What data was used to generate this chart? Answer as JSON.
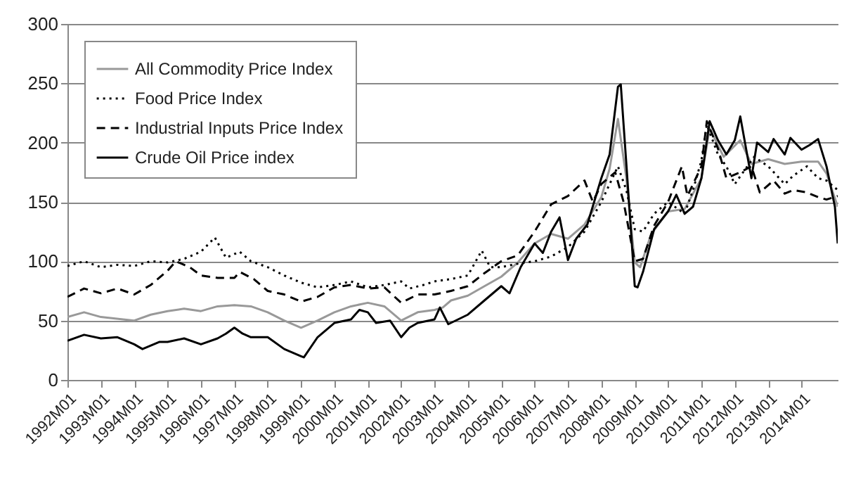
{
  "chart_data": {
    "type": "line",
    "xlim": [
      "1992-01",
      "2015-02"
    ],
    "xticks": [
      {
        "value": "1992-01",
        "label": "1992M01"
      },
      {
        "value": "1993-01",
        "label": "1993M01"
      },
      {
        "value": "1994-01",
        "label": "1994M01"
      },
      {
        "value": "1995-01",
        "label": "1995M01"
      },
      {
        "value": "1996-01",
        "label": "1996M01"
      },
      {
        "value": "1997-01",
        "label": "1997M01"
      },
      {
        "value": "1998-01",
        "label": "1998M01"
      },
      {
        "value": "1999-01",
        "label": "1999M01"
      },
      {
        "value": "2000-01",
        "label": "2000M01"
      },
      {
        "value": "2001-01",
        "label": "2001M01"
      },
      {
        "value": "2002-01",
        "label": "2002M01"
      },
      {
        "value": "2003-01",
        "label": "2003M01"
      },
      {
        "value": "2004-01",
        "label": "2004M01"
      },
      {
        "value": "2005-01",
        "label": "2005M01"
      },
      {
        "value": "2006-01",
        "label": "2006M01"
      },
      {
        "value": "2007-01",
        "label": "2007M01"
      },
      {
        "value": "2008-01",
        "label": "2008M01"
      },
      {
        "value": "2009-01",
        "label": "2009M01"
      },
      {
        "value": "2010-01",
        "label": "2010M01"
      },
      {
        "value": "2011-01",
        "label": "2011M01"
      },
      {
        "value": "2012-01",
        "label": "2012M01"
      },
      {
        "value": "2013-01",
        "label": "2013M01"
      },
      {
        "value": "2014-01",
        "label": "2014M01"
      }
    ],
    "ylim": [
      0,
      300
    ],
    "yticks": [
      0,
      50,
      100,
      150,
      200,
      250,
      300
    ],
    "grid": "y",
    "legend": "top left",
    "series": [
      {
        "name": "All Commodity Price Index",
        "color": "#999999",
        "line_style": "solid",
        "x": [
          "1992-01",
          "1992-07",
          "1993-01",
          "1994-01",
          "1994-07",
          "1995-01",
          "1995-07",
          "1996-01",
          "1996-07",
          "1997-01",
          "1997-07",
          "1998-01",
          "1998-07",
          "1999-01",
          "1999-07",
          "2000-01",
          "2000-07",
          "2001-01",
          "2001-07",
          "2002-01",
          "2002-07",
          "2003-01",
          "2003-04",
          "2003-07",
          "2004-01",
          "2004-07",
          "2005-01",
          "2005-07",
          "2006-01",
          "2006-07",
          "2007-01",
          "2007-07",
          "2008-01",
          "2008-04",
          "2008-07",
          "2008-10",
          "2009-01",
          "2009-03",
          "2009-07",
          "2010-01",
          "2010-07",
          "2011-01",
          "2011-04",
          "2011-09",
          "2012-03",
          "2012-07",
          "2013-01",
          "2013-07",
          "2014-01",
          "2014-07",
          "2014-10",
          "2015-02"
        ],
        "values": [
          53,
          57,
          53,
          50,
          55,
          58,
          60,
          58,
          62,
          63,
          62,
          57,
          50,
          44,
          50,
          57,
          62,
          65,
          62,
          50,
          57,
          59,
          61,
          67,
          71,
          79,
          87,
          99,
          115,
          123,
          119,
          131,
          154,
          178,
          220,
          170,
          99,
          95,
          123,
          142,
          144,
          170,
          212,
          188,
          202,
          182,
          186,
          182,
          184,
          184,
          174,
          146
        ]
      },
      {
        "name": "Food Price Index",
        "color": "#000000",
        "line_style": "dotted",
        "x": [
          "1992-01",
          "1992-07",
          "1993-01",
          "1993-07",
          "1994-01",
          "1994-07",
          "1995-01",
          "1995-07",
          "1996-01",
          "1996-06",
          "1996-10",
          "1997-03",
          "1997-07",
          "1998-01",
          "1998-07",
          "1999-01",
          "1999-07",
          "2000-01",
          "2000-07",
          "2001-01",
          "2001-07",
          "2002-01",
          "2002-04",
          "2002-09",
          "2003-01",
          "2003-07",
          "2004-01",
          "2004-06",
          "2004-09",
          "2005-01",
          "2005-07",
          "2006-01",
          "2006-07",
          "2007-01",
          "2007-07",
          "2008-01",
          "2008-07",
          "2008-10",
          "2009-01",
          "2009-04",
          "2009-08",
          "2010-01",
          "2010-07",
          "2010-10",
          "2011-01",
          "2011-03",
          "2011-07",
          "2011-10",
          "2012-01",
          "2012-04",
          "2012-08",
          "2013-01",
          "2013-07",
          "2013-10",
          "2014-03",
          "2014-07",
          "2014-10",
          "2015-02"
        ],
        "values": [
          96,
          100,
          95,
          97,
          96,
          100,
          99,
          102,
          108,
          120,
          103,
          108,
          100,
          95,
          88,
          82,
          78,
          80,
          83,
          78,
          80,
          83,
          77,
          80,
          83,
          85,
          88,
          109,
          95,
          95,
          98,
          100,
          104,
          112,
          125,
          150,
          180,
          160,
          127,
          125,
          140,
          150,
          140,
          160,
          185,
          215,
          190,
          180,
          165,
          175,
          188,
          180,
          165,
          172,
          180,
          170,
          168,
          160
        ]
      },
      {
        "name": "Industrial Inputs Price Index",
        "color": "#000000",
        "line_style": "dashed",
        "x": [
          "1992-01",
          "1992-07",
          "1993-01",
          "1993-07",
          "1994-01",
          "1994-07",
          "1995-01",
          "1995-04",
          "1995-09",
          "1996-01",
          "1996-07",
          "1997-01",
          "1997-03",
          "1997-08",
          "1998-01",
          "1998-07",
          "1999-01",
          "1999-07",
          "2000-01",
          "2000-07",
          "2001-01",
          "2001-07",
          "2002-01",
          "2002-07",
          "2003-01",
          "2003-07",
          "2004-01",
          "2004-07",
          "2005-01",
          "2005-07",
          "2006-01",
          "2006-07",
          "2007-01",
          "2007-07",
          "2007-10",
          "2008-01",
          "2008-06",
          "2008-09",
          "2009-01",
          "2009-04",
          "2009-08",
          "2010-01",
          "2010-06",
          "2010-08",
          "2011-01",
          "2011-03",
          "2011-07",
          "2011-10",
          "2012-03",
          "2012-07",
          "2012-10",
          "2013-03",
          "2013-07",
          "2013-10",
          "2014-03",
          "2014-07",
          "2014-10",
          "2015-02"
        ],
        "values": [
          70,
          77,
          73,
          77,
          72,
          80,
          92,
          100,
          95,
          88,
          86,
          86,
          91,
          85,
          75,
          72,
          66,
          70,
          78,
          80,
          77,
          78,
          65,
          72,
          72,
          75,
          79,
          90,
          100,
          105,
          125,
          148,
          155,
          168,
          150,
          165,
          175,
          150,
          100,
          102,
          130,
          150,
          180,
          155,
          180,
          218,
          195,
          170,
          175,
          180,
          158,
          168,
          157,
          160,
          158,
          154,
          152,
          155
        ]
      },
      {
        "name": "Crude Oil Price index",
        "color": "#000000",
        "line_style": "solid",
        "x": [
          "1992-01",
          "1992-07",
          "1993-01",
          "1993-07",
          "1994-01",
          "1994-04",
          "1994-10",
          "1995-01",
          "1995-07",
          "1996-01",
          "1996-07",
          "1996-10",
          "1997-01",
          "1997-04",
          "1997-07",
          "1998-01",
          "1998-07",
          "1999-01",
          "1999-02",
          "1999-07",
          "2000-01",
          "2000-07",
          "2000-10",
          "2001-01",
          "2001-04",
          "2001-09",
          "2002-01",
          "2002-04",
          "2002-07",
          "2003-01",
          "2003-03",
          "2003-06",
          "2004-01",
          "2004-07",
          "2005-01",
          "2005-04",
          "2005-08",
          "2006-01",
          "2006-04",
          "2006-07",
          "2006-10",
          "2007-01",
          "2007-04",
          "2007-08",
          "2008-01",
          "2008-04",
          "2008-07",
          "2008-08",
          "2008-10",
          "2009-01",
          "2009-02",
          "2009-04",
          "2009-08",
          "2010-01",
          "2010-04",
          "2010-07",
          "2010-10",
          "2011-01",
          "2011-04",
          "2011-07",
          "2011-10",
          "2012-01",
          "2012-03",
          "2012-07",
          "2012-09",
          "2013-01",
          "2013-03",
          "2013-07",
          "2013-09",
          "2014-01",
          "2014-04",
          "2014-07",
          "2014-10",
          "2015-01",
          "2015-02"
        ],
        "values": [
          33,
          38,
          35,
          36,
          30,
          26,
          32,
          32,
          35,
          30,
          35,
          39,
          44,
          39,
          36,
          36,
          26,
          20,
          19,
          36,
          48,
          51,
          59,
          57,
          48,
          50,
          36,
          44,
          48,
          51,
          61,
          47,
          55,
          67,
          79,
          73,
          95,
          115,
          107,
          125,
          137,
          101,
          119,
          131,
          170,
          190,
          247,
          249,
          182,
          79,
          78,
          91,
          127,
          142,
          156,
          140,
          146,
          170,
          218,
          202,
          190,
          202,
          222,
          170,
          200,
          192,
          203,
          190,
          204,
          194,
          198,
          203,
          180,
          146,
          115
        ]
      }
    ]
  }
}
